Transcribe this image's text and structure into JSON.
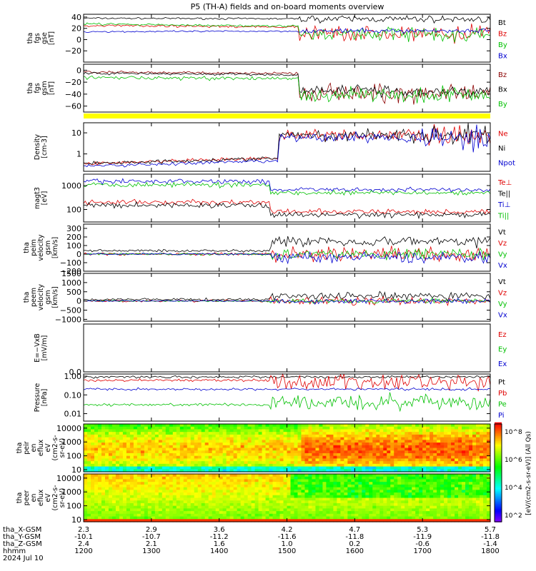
{
  "title": "P5 (TH-A) fields and on-board moments overview",
  "colorbar_label": "[eV/(cm2-s-sr-eV)] (All Qs)",
  "colorbar_ticks": [
    "10^8",
    "10^6",
    "10^4",
    "10^2"
  ],
  "orbit": {
    "rows": [
      {
        "label": "tha_X-GSM",
        "values": [
          "2.3",
          "2.9",
          "3.6",
          "4.2",
          "4.7",
          "5.3",
          "5.7"
        ]
      },
      {
        "label": "tha_Y-GSM",
        "values": [
          "-10.1",
          "-10.7",
          "-11.2",
          "-11.6",
          "-11.8",
          "-11.9",
          "-11.8"
        ]
      },
      {
        "label": "tha_Z-GSM",
        "values": [
          "2.4",
          "2.1",
          "1.6",
          "1.0",
          "0.2",
          "-0.6",
          "-1.4"
        ]
      },
      {
        "label": "hhmm",
        "values": [
          "1200",
          "1300",
          "1400",
          "1500",
          "1600",
          "1700",
          "1800"
        ]
      }
    ],
    "date": "2024 Jul 10"
  },
  "chart_data": [
    {
      "id": "fgs_gse",
      "type": "line",
      "ylabel": [
        "tha",
        "fgs",
        "gse",
        "[nT]"
      ],
      "ylim": [
        -40,
        45
      ],
      "yticks": [
        {
          "v": 40,
          "t": "40"
        },
        {
          "v": 20,
          "t": "20"
        },
        {
          "v": 0,
          "t": "0"
        },
        {
          "v": -20,
          "t": "−20"
        }
      ],
      "legend": [
        {
          "name": "Bt",
          "color": "#000000"
        },
        {
          "name": "Bz",
          "color": "#e00000"
        },
        {
          "name": "By",
          "color": "#00c000"
        },
        {
          "name": "Bx",
          "color": "#0000d0"
        }
      ]
    },
    {
      "id": "fgs_gsm",
      "type": "line",
      "ylabel": [
        "tha",
        "fgs",
        "gsm",
        "[nT]"
      ],
      "ylim": [
        -70,
        10
      ],
      "yticks": [
        {
          "v": 0,
          "t": "0"
        },
        {
          "v": -20,
          "t": "−20"
        },
        {
          "v": -40,
          "t": "−40"
        },
        {
          "v": -60,
          "t": "−60"
        }
      ],
      "legend": [
        {
          "name": "Bz",
          "color": "#8b0000"
        },
        {
          "name": "Bx",
          "color": "#000000"
        },
        {
          "name": "By",
          "color": "#00c000"
        }
      ]
    },
    {
      "id": "density",
      "type": "line",
      "log": true,
      "ylabel": [
        "Density",
        "[cm-3]"
      ],
      "ylim": [
        0.15,
        30
      ],
      "yticks": [
        {
          "v": 10,
          "t": "10"
        },
        {
          "v": 1,
          "t": "1"
        }
      ],
      "legend": [
        {
          "name": "Ne",
          "color": "#e00000"
        },
        {
          "name": "Ni",
          "color": "#000000"
        },
        {
          "name": "Npot",
          "color": "#0000d0"
        }
      ]
    },
    {
      "id": "temp",
      "type": "line",
      "log": true,
      "ylabel": [
        "magt3",
        "[eV]"
      ],
      "ylim": [
        30,
        3000
      ],
      "yticks": [
        {
          "v": 1000,
          "t": "1000"
        },
        {
          "v": 100,
          "t": "100"
        }
      ],
      "legend": [
        {
          "name": "Te⊥",
          "color": "#e00000"
        },
        {
          "name": "Te||",
          "color": "#000000"
        },
        {
          "name": "Ti⊥",
          "color": "#0000d0"
        },
        {
          "name": "Ti||",
          "color": "#00c000"
        }
      ]
    },
    {
      "id": "peim_vel",
      "type": "line",
      "ylabel": [
        "tha",
        "peim",
        "velocity",
        "gsm",
        "[km/s]"
      ],
      "ylim": [
        -200,
        350
      ],
      "yticks": [
        {
          "v": 300,
          "t": "300"
        },
        {
          "v": 200,
          "t": "200"
        },
        {
          "v": 100,
          "t": "100"
        },
        {
          "v": 0,
          "t": "0"
        },
        {
          "v": -100,
          "t": "−100"
        },
        {
          "v": -200,
          "t": "−200"
        }
      ],
      "legend": [
        {
          "name": "Vt",
          "color": "#000000"
        },
        {
          "name": "Vz",
          "color": "#e00000"
        },
        {
          "name": "Vy",
          "color": "#00c000"
        },
        {
          "name": "Vx",
          "color": "#0000d0"
        }
      ]
    },
    {
      "id": "peem_vel",
      "type": "line",
      "ylabel": [
        "tha",
        "peem",
        "velocity",
        "gsm",
        "[km/s]"
      ],
      "ylim": [
        -1100,
        1500
      ],
      "yticks": [
        {
          "v": 1500,
          "t": "1500"
        },
        {
          "v": 1000,
          "t": "1000"
        },
        {
          "v": 500,
          "t": "500"
        },
        {
          "v": 0,
          "t": "0"
        },
        {
          "v": -500,
          "t": "−500"
        },
        {
          "v": -1000,
          "t": "−1000"
        }
      ],
      "legend": [
        {
          "name": "Vt",
          "color": "#000000"
        },
        {
          "name": "Vz",
          "color": "#e00000"
        },
        {
          "name": "Vy",
          "color": "#00c000"
        },
        {
          "name": "Vx",
          "color": "#0000d0"
        }
      ]
    },
    {
      "id": "efield",
      "type": "line",
      "ylabel": [
        "E=−VxB",
        "[mV/m]"
      ],
      "ylim": [
        0,
        1
      ],
      "yticks": [
        {
          "v": 0,
          "t": "0.0"
        }
      ],
      "legend": [
        {
          "name": "Ez",
          "color": "#e00000"
        },
        {
          "name": "Ey",
          "color": "#00c000"
        },
        {
          "name": "Ex",
          "color": "#0000d0"
        }
      ]
    },
    {
      "id": "pressure",
      "type": "line",
      "log": true,
      "ylabel": [
        "Pressure",
        "[nPa]"
      ],
      "ylim": [
        0.004,
        1.3
      ],
      "yticks": [
        {
          "v": 1,
          "t": "1.00"
        },
        {
          "v": 0.1,
          "t": "0.10"
        },
        {
          "v": 0.01,
          "t": "0.01"
        }
      ],
      "legend": [
        {
          "name": "Pt",
          "color": "#000000"
        },
        {
          "name": "Pb",
          "color": "#e00000"
        },
        {
          "name": "Pe",
          "color": "#00c000"
        },
        {
          "name": "Pi",
          "color": "#0000d0"
        }
      ]
    },
    {
      "id": "peir",
      "type": "heatmap",
      "log": true,
      "ylabel": [
        "tha",
        "peir",
        "en",
        "eflux",
        "eV",
        "(cm2-s-",
        "sr-eV)"
      ],
      "ylim": [
        7,
        20000
      ],
      "yticks": [
        {
          "v": 10000,
          "t": "10000"
        },
        {
          "v": 1000,
          "t": "1000"
        },
        {
          "v": 100,
          "t": "100"
        },
        {
          "v": 10,
          "t": "10"
        }
      ]
    },
    {
      "id": "peer",
      "type": "heatmap",
      "log": true,
      "ylabel": [
        "tha",
        "peer",
        "en",
        "eflux",
        "eV",
        "(cm2-s-",
        "sr-eV)"
      ],
      "ylim": [
        7,
        20000
      ],
      "yticks": [
        {
          "v": 10000,
          "t": "10000"
        },
        {
          "v": 1000,
          "t": "1000"
        },
        {
          "v": 100,
          "t": "100"
        },
        {
          "v": 10,
          "t": "10"
        }
      ]
    }
  ]
}
